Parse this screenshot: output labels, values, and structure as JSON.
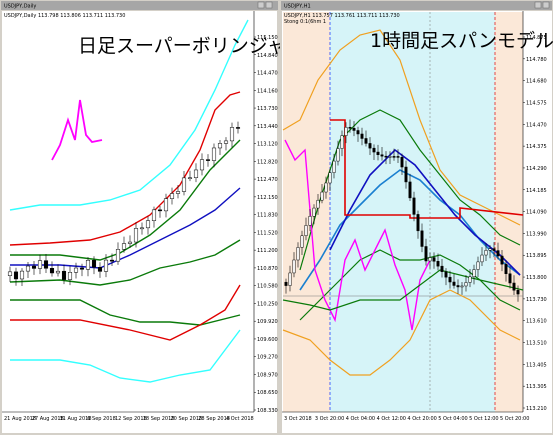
{
  "left": {
    "window_title": "USDJPY,Daily",
    "header": "USDJPY,Daily 113.798 113.806 113.711 113.730",
    "overlay": "日足スーパーボリンジャー",
    "price_labels": [
      "115.150",
      "114.840",
      "114.470",
      "114.160",
      "113.730",
      "113.440",
      "113.120",
      "112.820",
      "112.470",
      "112.150",
      "111.830",
      "111.520",
      "111.200",
      "110.870",
      "110.580",
      "110.250",
      "109.920",
      "109.600",
      "109.270",
      "108.970",
      "108.650",
      "108.330"
    ],
    "date_labels": [
      "21 Aug 2018",
      "27 Aug 2018",
      "31 Aug 2018",
      "6 Sep 2018",
      "12 Sep 2018",
      "18 Sep 2018",
      "20 Sep 2018",
      "28 Sep 2018",
      "4 Oct 2018"
    ]
  },
  "right": {
    "window_title": "USDJPY,H1",
    "header": "USDJPY,H1 113.757 113.761 113.711 113.730",
    "sub_header": "Stong 0:1(6hm 1",
    "overlay": "1時間足スパンモデル",
    "price_labels": [
      "114.875",
      "114.780",
      "114.680",
      "114.575",
      "114.470",
      "114.375",
      "114.290",
      "114.185",
      "114.090",
      "113.990",
      "113.895",
      "113.800",
      "113.730",
      "113.610",
      "113.510",
      "113.405",
      "113.305",
      "113.210"
    ],
    "date_labels": [
      "3 Oct 2018",
      "3 Oct 20:00",
      "4 Oct 04:00",
      "4 Oct 12:00",
      "4 Oct 20:00",
      "5 Oct 04:00",
      "5 Oct 12:00",
      "5 Oct 20:00"
    ]
  }
}
